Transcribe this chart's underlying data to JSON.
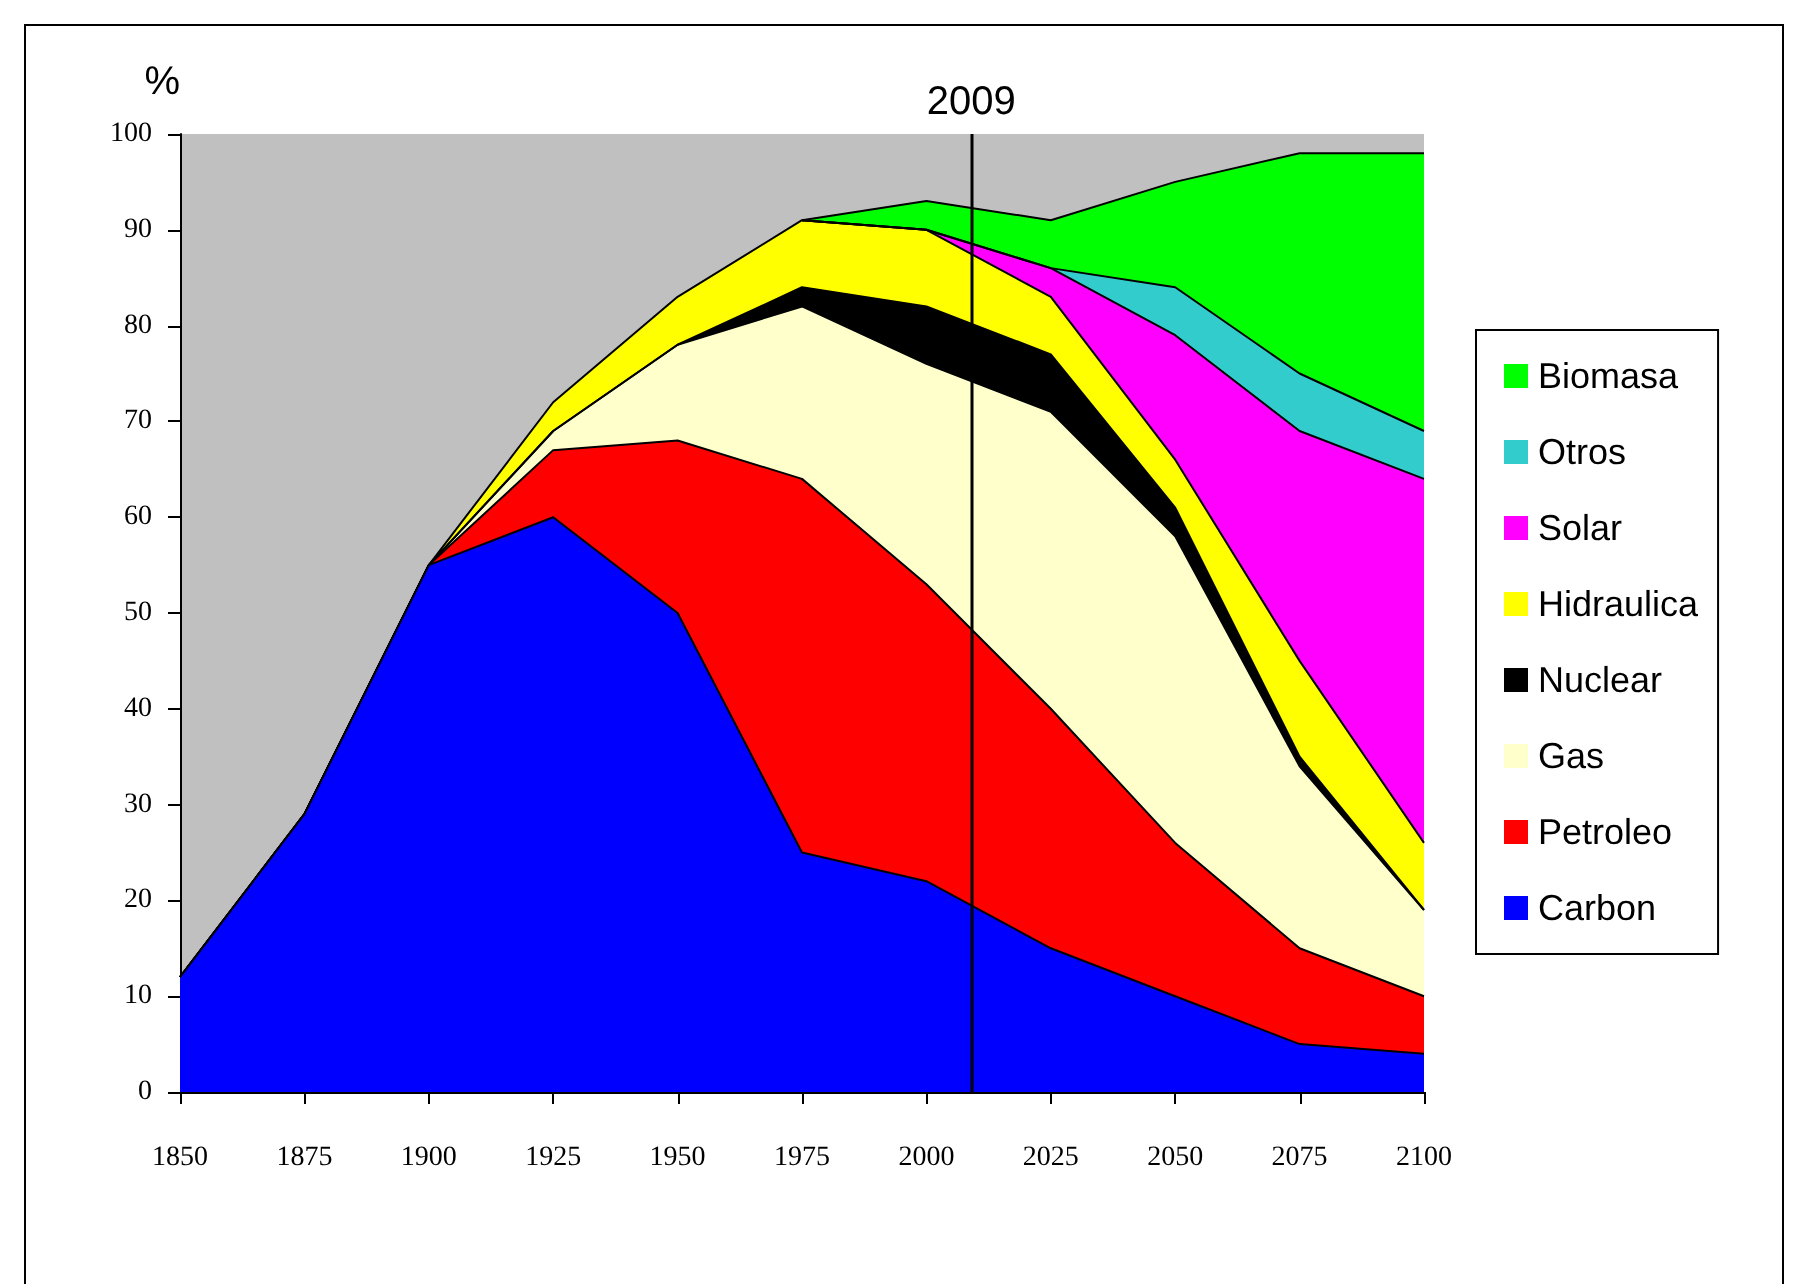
{
  "chart_data": {
    "type": "area",
    "stacked": true,
    "ylabel": "%",
    "x": [
      1850,
      1875,
      1900,
      1925,
      1950,
      1975,
      2000,
      2025,
      2050,
      2075,
      2100
    ],
    "xlim": [
      1850,
      2100
    ],
    "xticks": [
      1850,
      1875,
      1900,
      1925,
      1950,
      1975,
      2000,
      2025,
      2050,
      2075,
      2100
    ],
    "ylim": [
      0,
      100
    ],
    "yticks": [
      0,
      10,
      20,
      30,
      40,
      50,
      60,
      70,
      80,
      90,
      100
    ],
    "grid": false,
    "legend": "right",
    "ref_lines": [
      {
        "axis": "x",
        "value": 2009,
        "label": "2009",
        "color": "#000000"
      }
    ],
    "series": [
      {
        "name": "Carbon",
        "color": "#0000ff",
        "values": [
          12,
          29,
          55,
          60,
          50,
          25,
          22,
          15,
          10,
          5,
          4
        ]
      },
      {
        "name": "Petroleo",
        "color": "#ff0000",
        "values": [
          0,
          0,
          0,
          7,
          18,
          39,
          31,
          25,
          16,
          10,
          6
        ]
      },
      {
        "name": "Gas",
        "color": "#ffffcc",
        "values": [
          0,
          0,
          0,
          2,
          10,
          18,
          23,
          31,
          32,
          19,
          9
        ]
      },
      {
        "name": "Nuclear",
        "color": "#000000",
        "values": [
          0,
          0,
          0,
          0,
          0,
          2,
          6,
          6,
          3,
          1,
          0
        ]
      },
      {
        "name": "Hidraulica",
        "color": "#ffff00",
        "values": [
          0,
          0,
          0,
          3,
          5,
          7,
          8,
          6,
          5,
          10,
          7
        ]
      },
      {
        "name": "Solar",
        "color": "#ff00ff",
        "values": [
          null,
          null,
          null,
          null,
          null,
          0,
          0,
          3,
          13,
          24,
          38
        ]
      },
      {
        "name": "Otros",
        "color": "#33cccc",
        "values": [
          null,
          null,
          null,
          null,
          null,
          0,
          0,
          0,
          5,
          6,
          5
        ]
      },
      {
        "name": "Biomasa",
        "color": "#00ff00",
        "values": [
          null,
          null,
          null,
          null,
          null,
          0,
          3,
          5,
          11,
          23,
          29
        ]
      }
    ]
  }
}
